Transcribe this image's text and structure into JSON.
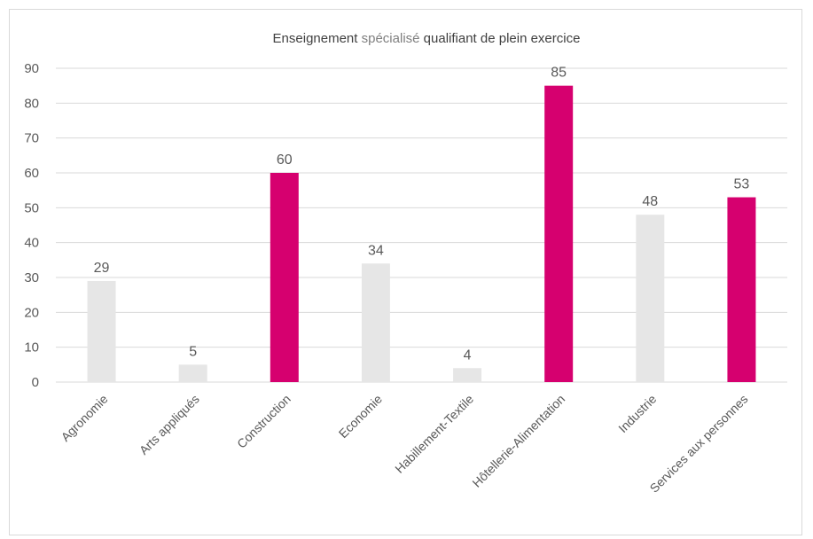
{
  "chart_data": {
    "type": "bar",
    "title": "Enseignement spécialisé qualifiant de plein exercice",
    "title_parts": [
      {
        "text": "Enseignement ",
        "weight": "normal"
      },
      {
        "text": "spécialisé",
        "weight": "light"
      },
      {
        "text": " qualifiant de plein exercice",
        "weight": "normal"
      }
    ],
    "categories": [
      "Agronomie",
      "Arts appliqués",
      "Construction",
      "Economie",
      "Habillement-Textile",
      "Hôtellerie-Alimentation",
      "Industrie",
      "Services aux personnes"
    ],
    "values": [
      29,
      5,
      60,
      34,
      4,
      85,
      48,
      53
    ],
    "highlighted": [
      false,
      false,
      true,
      false,
      false,
      true,
      false,
      true
    ],
    "colors": {
      "default": "#e6e6e6",
      "highlight": "#d6006f",
      "grid": "#d9d9d9",
      "text": "#595959"
    },
    "ylim": [
      0,
      90
    ],
    "yticks": [
      0,
      10,
      20,
      30,
      40,
      50,
      60,
      70,
      80,
      90
    ],
    "xlabel": "",
    "ylabel": "",
    "grid": true,
    "data_labels": true
  }
}
